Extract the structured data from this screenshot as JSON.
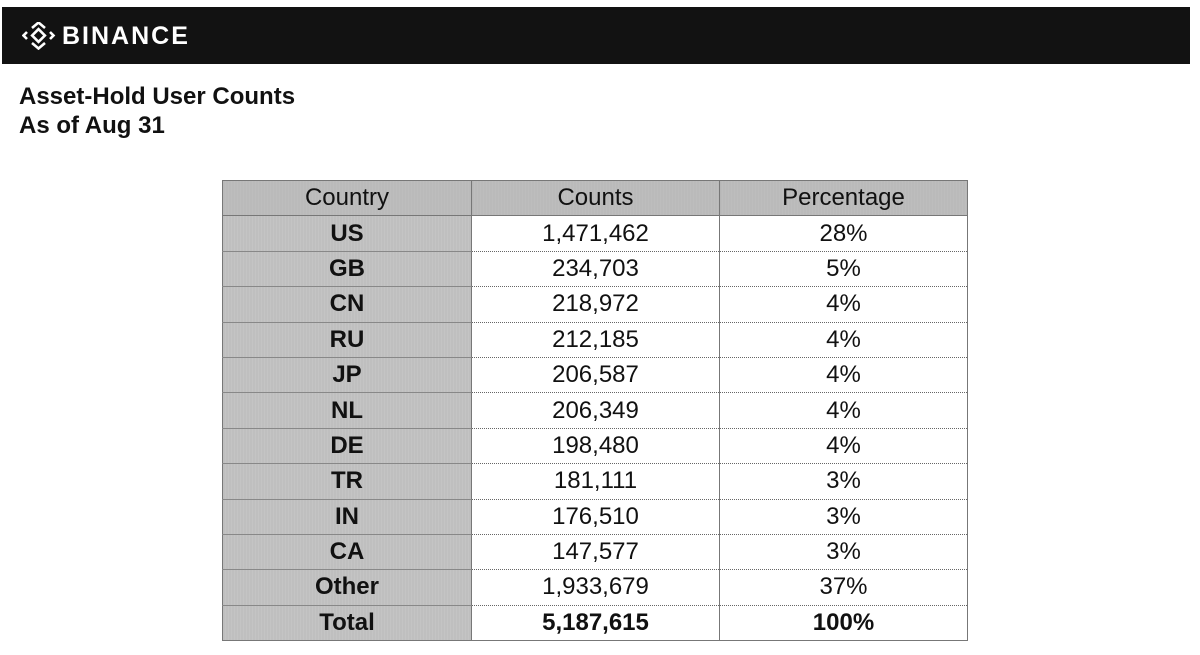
{
  "header": {
    "brand": "BINANCE",
    "logo_icon": "binance-diamond-logo",
    "background": "#121212"
  },
  "title": {
    "line1": "Asset-Hold User Counts",
    "line2": "As of Aug 31"
  },
  "table": {
    "columns": [
      "Country",
      "Counts",
      "Percentage"
    ],
    "rows": [
      {
        "country": "US",
        "count": "1,471,462",
        "percent": "28%"
      },
      {
        "country": "GB",
        "count": "234,703",
        "percent": "5%"
      },
      {
        "country": "CN",
        "count": "218,972",
        "percent": "4%"
      },
      {
        "country": "RU",
        "count": "212,185",
        "percent": "4%"
      },
      {
        "country": "JP",
        "count": "206,587",
        "percent": "4%"
      },
      {
        "country": "NL",
        "count": "206,349",
        "percent": "4%"
      },
      {
        "country": "DE",
        "count": "198,480",
        "percent": "4%"
      },
      {
        "country": "TR",
        "count": "181,111",
        "percent": "3%"
      },
      {
        "country": "IN",
        "count": "176,510",
        "percent": "3%"
      },
      {
        "country": "CA",
        "count": "147,577",
        "percent": "3%"
      },
      {
        "country": "Other",
        "count": "1,933,679",
        "percent": "37%"
      }
    ],
    "total": {
      "country": "Total",
      "count": "5,187,615",
      "percent": "100%"
    }
  }
}
